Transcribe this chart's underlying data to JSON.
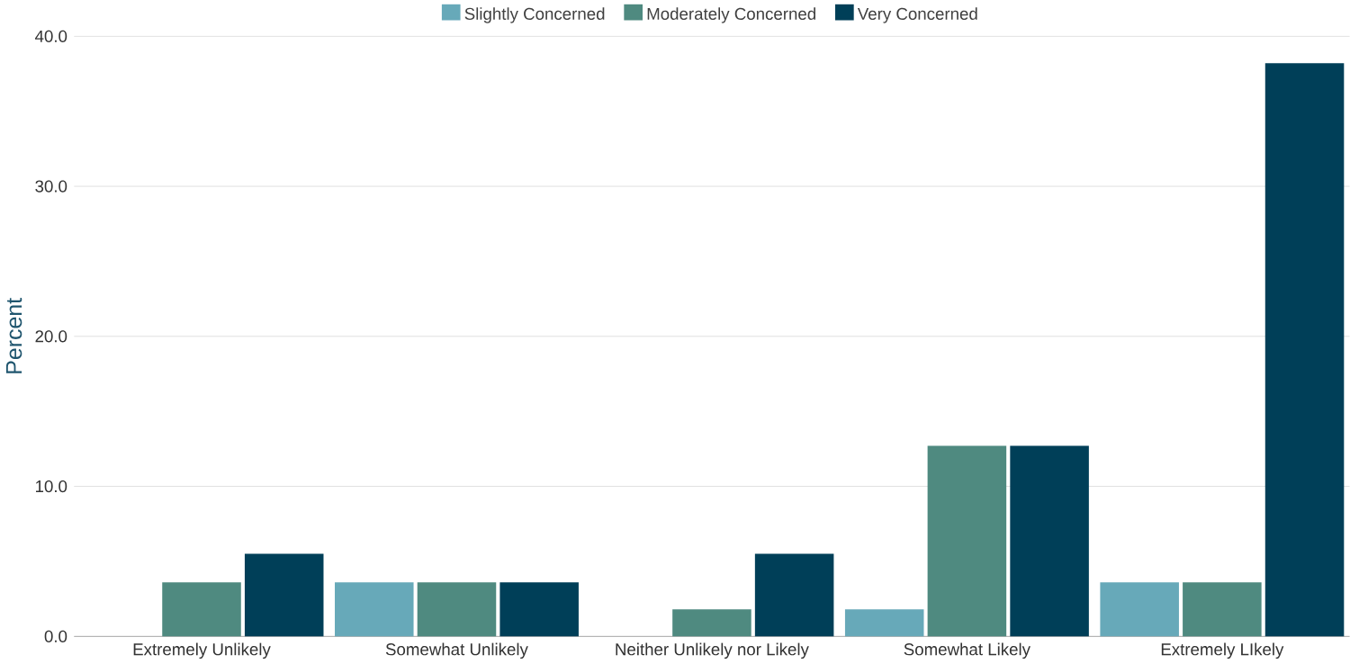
{
  "chart_data": {
    "type": "bar",
    "ylabel": "Percent",
    "categories": [
      "Extremely Unlikely",
      "Somewhat Unlikely",
      "Neither Unlikely nor Likely",
      "Somewhat Likely",
      "Extremely LIkely"
    ],
    "series": [
      {
        "name": "Slightly Concerned",
        "color": "#67a9b9",
        "values": [
          0,
          3.6,
          0,
          1.8,
          3.6
        ]
      },
      {
        "name": "Moderately Concerned",
        "color": "#4f8a80",
        "values": [
          3.6,
          3.6,
          1.8,
          12.7,
          3.6
        ]
      },
      {
        "name": "Very Concerned",
        "color": "#003f58",
        "values": [
          5.5,
          3.6,
          5.5,
          12.7,
          38.2
        ]
      }
    ],
    "ylim": [
      0,
      40
    ],
    "yticks": [
      {
        "value": 0,
        "label": "0.0"
      },
      {
        "value": 10,
        "label": "10.0"
      },
      {
        "value": 20,
        "label": "20.0"
      },
      {
        "value": 30,
        "label": "30.0"
      },
      {
        "value": 40,
        "label": "40.0"
      }
    ],
    "grid": "y",
    "legend": "top"
  }
}
